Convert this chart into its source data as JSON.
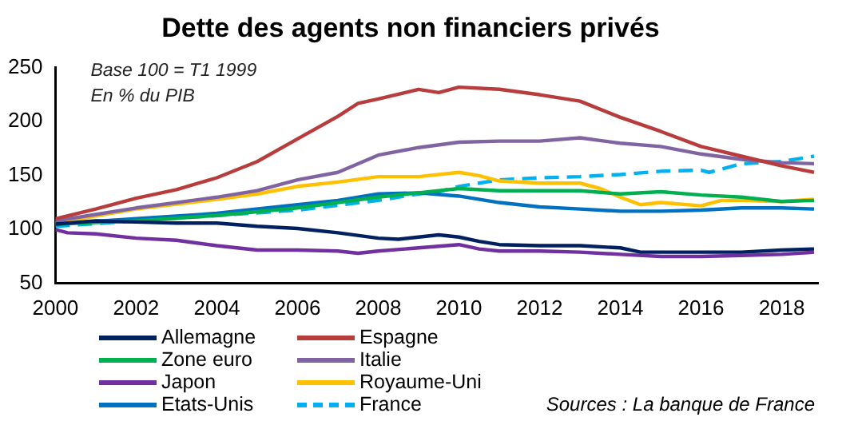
{
  "chart_data": {
    "type": "line",
    "title": "Dette des agents non financiers privés",
    "annotations": [
      "Base 100 = T1 1999",
      "En % du PIB",
      "Sources : La banque de France"
    ],
    "xlim": [
      2000,
      2018.9
    ],
    "xticks": [
      2000,
      2002,
      2004,
      2006,
      2008,
      2010,
      2012,
      2014,
      2016,
      2018
    ],
    "ylim": [
      50,
      250
    ],
    "yticks": [
      50,
      100,
      150,
      200,
      250
    ],
    "grid": false,
    "legend": "bottom",
    "marker": "none",
    "series": [
      {
        "name": "Allemagne",
        "color": "#002060",
        "x": [
          2000,
          2001,
          2002,
          2003,
          2004,
          2005,
          2006,
          2007,
          2008,
          2008.5,
          2009,
          2009.5,
          2010,
          2010.5,
          2011,
          2012,
          2013,
          2014,
          2014.5,
          2015,
          2016,
          2017,
          2018,
          2018.8
        ],
        "values": [
          105,
          108,
          107,
          106,
          106,
          103,
          101,
          97,
          92,
          91,
          93,
          95,
          93,
          89,
          86,
          85,
          85,
          83,
          79,
          79,
          79,
          79,
          81,
          82
        ]
      },
      {
        "name": "Espagne",
        "color": "#b83c3c",
        "x": [
          2000,
          2001,
          2002,
          2003,
          2004,
          2005,
          2006,
          2007,
          2007.5,
          2008,
          2009,
          2009.5,
          2010,
          2011,
          2012,
          2013,
          2014,
          2015,
          2016,
          2017,
          2018,
          2018.8
        ],
        "values": [
          110,
          119,
          129,
          137,
          148,
          163,
          184,
          205,
          217,
          221,
          230,
          227,
          232,
          230,
          225,
          219,
          204,
          191,
          177,
          168,
          159,
          153
        ]
      },
      {
        "name": "Zone euro",
        "color": "#00b050",
        "x": [
          2000,
          2002,
          2004,
          2006,
          2008,
          2009,
          2010,
          2011,
          2012,
          2013,
          2014,
          2015,
          2016,
          2017,
          2018,
          2018.8
        ],
        "values": [
          105,
          108,
          113,
          120,
          130,
          134,
          138,
          136,
          136,
          136,
          133,
          135,
          132,
          130,
          126,
          127
        ]
      },
      {
        "name": "Italie",
        "color": "#8064a2",
        "x": [
          2000,
          2002,
          2004,
          2005,
          2006,
          2007,
          2008,
          2009,
          2010,
          2011,
          2012,
          2013,
          2014,
          2015,
          2016,
          2017,
          2018,
          2018.8
        ],
        "values": [
          108,
          120,
          130,
          136,
          146,
          153,
          169,
          176,
          181,
          182,
          182,
          185,
          180,
          177,
          170,
          165,
          162,
          161
        ]
      },
      {
        "name": "Japon",
        "color": "#7030a0",
        "x": [
          2000,
          2000.3,
          2001,
          2002,
          2003,
          2004,
          2005,
          2006,
          2007,
          2007.5,
          2008,
          2009,
          2010,
          2010.5,
          2011,
          2012,
          2013,
          2014,
          2015,
          2016,
          2017,
          2018,
          2018.8
        ],
        "values": [
          100,
          97,
          96,
          92,
          90,
          85,
          81,
          81,
          80,
          78,
          80,
          83,
          86,
          82,
          80,
          80,
          79,
          77,
          75,
          75,
          76,
          77,
          79
        ]
      },
      {
        "name": "Royaume-Uni",
        "color": "#ffc000",
        "x": [
          2000,
          2002,
          2004,
          2005,
          2006,
          2007,
          2008,
          2009,
          2010,
          2010.5,
          2011,
          2012,
          2013,
          2013.5,
          2014,
          2014.5,
          2015,
          2016,
          2016.5,
          2017,
          2018,
          2018.8
        ],
        "values": [
          106,
          119,
          128,
          133,
          140,
          144,
          149,
          149,
          153,
          150,
          145,
          143,
          143,
          138,
          130,
          123,
          125,
          122,
          127,
          127,
          126,
          128
        ]
      },
      {
        "name": "Etats-Unis",
        "color": "#0070c0",
        "x": [
          2000,
          2002,
          2004,
          2006,
          2007,
          2008,
          2009,
          2010,
          2011,
          2012,
          2013,
          2014,
          2015,
          2016,
          2017,
          2018,
          2018.8
        ],
        "values": [
          105,
          110,
          115,
          123,
          127,
          133,
          134,
          131,
          125,
          121,
          119,
          117,
          117,
          118,
          120,
          120,
          119
        ]
      },
      {
        "name": "France",
        "color": "#00b0f0",
        "line_style": "dashed",
        "x": [
          2000,
          2002,
          2004,
          2006,
          2008,
          2009,
          2009.5,
          2010,
          2011,
          2012,
          2013,
          2014,
          2015,
          2016,
          2016.2,
          2017,
          2018,
          2018.8
        ],
        "values": [
          103,
          108,
          113,
          118,
          127,
          133,
          135,
          140,
          146,
          148,
          149,
          151,
          154,
          155,
          153,
          161,
          163,
          168
        ]
      }
    ]
  }
}
